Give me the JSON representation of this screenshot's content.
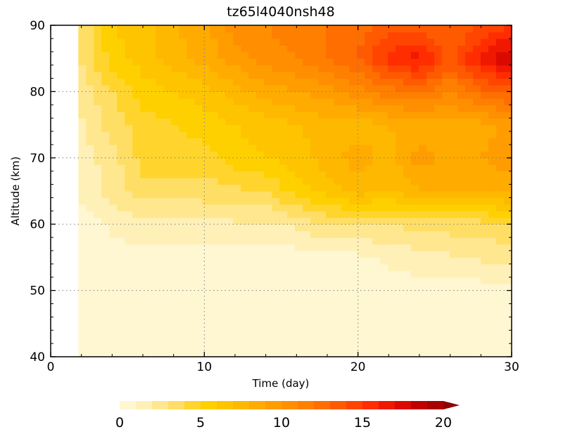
{
  "chart_data": {
    "type": "heatmap",
    "title": "tz65l4040nsh48",
    "xlabel": "Time  (day)",
    "ylabel": "Altitude  (km)",
    "xlim": [
      0,
      30
    ],
    "ylim": [
      40,
      90
    ],
    "xticks": [
      0,
      10,
      20,
      30
    ],
    "yticks": [
      40,
      50,
      60,
      70,
      80,
      90
    ],
    "grid": "dotted at 10 day and 10 km intervals",
    "data_start_day": 1.8,
    "time_days": [
      2,
      4,
      6,
      8,
      10,
      12,
      14,
      16,
      18,
      20,
      22,
      24,
      26,
      28,
      30
    ],
    "altitude_km": [
      40,
      45,
      50,
      55,
      60,
      65,
      70,
      75,
      80,
      85,
      90
    ],
    "values": [
      [
        0.5,
        0.5,
        0.5,
        0.5,
        0.5,
        0.5,
        0.5,
        0.5,
        0.5,
        0.5,
        0.5,
        0.5,
        0.5,
        0.5,
        0.5
      ],
      [
        0.5,
        0.5,
        0.5,
        0.5,
        0.5,
        0.5,
        0.5,
        0.5,
        0.5,
        0.5,
        0.5,
        0.5,
        0.5,
        0.5,
        0.5
      ],
      [
        0.5,
        0.5,
        0.5,
        0.5,
        0.5,
        0.5,
        0.5,
        0.5,
        0.5,
        0.5,
        0.5,
        0.5,
        0.5,
        0.5,
        0.7
      ],
      [
        0.5,
        0.5,
        0.5,
        0.5,
        0.5,
        0.5,
        0.5,
        0.5,
        0.5,
        0.8,
        1.2,
        1.6,
        1.8,
        2.2,
        2.5
      ],
      [
        0.5,
        1.2,
        1.8,
        1.8,
        1.8,
        1.8,
        1.8,
        2.2,
        3.0,
        3.0,
        3.0,
        3.5,
        3.5,
        3.5,
        4.0
      ],
      [
        1.2,
        2.5,
        3.5,
        3.5,
        3.5,
        3.8,
        4.0,
        5.5,
        6.5,
        7.5,
        7.0,
        8.0,
        8.0,
        8.0,
        8.5
      ],
      [
        1.5,
        2.5,
        4.5,
        4.5,
        4.5,
        5.5,
        6.0,
        6.5,
        7.5,
        8.5,
        7.5,
        9.5,
        8.5,
        9.0,
        9.5
      ],
      [
        1.8,
        3.5,
        4.5,
        5.0,
        5.5,
        6.0,
        6.5,
        7.0,
        7.5,
        7.5,
        8.0,
        8.5,
        8.5,
        8.5,
        9.5
      ],
      [
        2.5,
        4.0,
        5.5,
        6.0,
        6.5,
        7.5,
        8.5,
        9.0,
        9.5,
        10.5,
        11.5,
        12.0,
        11.0,
        12.5,
        13.5
      ],
      [
        3.0,
        5.5,
        6.5,
        7.5,
        8.5,
        9.5,
        10.5,
        11.0,
        12.0,
        13.0,
        15.5,
        16.5,
        13.5,
        16.5,
        18.0
      ],
      [
        3.0,
        6.0,
        6.5,
        8.0,
        8.5,
        10.5,
        11.0,
        11.5,
        12.0,
        12.5,
        13.5,
        13.5,
        13.0,
        14.0,
        15.0
      ]
    ],
    "colorbar": {
      "ticks": [
        0,
        5,
        10,
        15,
        20
      ],
      "levels": [
        0,
        1,
        2,
        3,
        4,
        5,
        6,
        7,
        8,
        9,
        10,
        11,
        12,
        13,
        14,
        15,
        16,
        17,
        18,
        19,
        20
      ],
      "extend": "max",
      "placement": "bottom"
    },
    "colors": [
      "#fff7d2",
      "#fff0b8",
      "#ffe78f",
      "#ffde66",
      "#ffd52d",
      "#ffd000",
      "#ffc400",
      "#ffb800",
      "#ffab00",
      "#ff9d00",
      "#ff8f00",
      "#ff7f00",
      "#ff6e00",
      "#ff5a00",
      "#ff4500",
      "#ff2d00",
      "#f01800",
      "#db0a00",
      "#c00000",
      "#a80000",
      "#900000"
    ]
  }
}
